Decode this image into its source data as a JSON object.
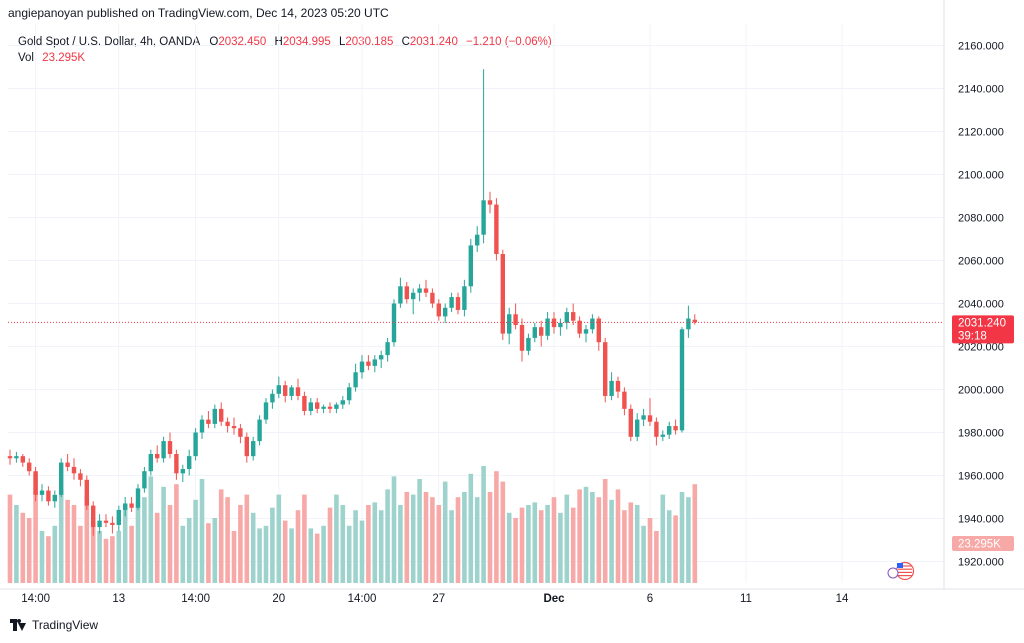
{
  "caption": "angiepanoyan published on TradingView.com, Dec 14, 2023 05:20 UTC",
  "legend": {
    "symbol": "Gold Spot / U.S. Dollar, 4h, OANDA",
    "open_label": "O",
    "open": "2032.450",
    "high_label": "H",
    "high": "2034.995",
    "low_label": "L",
    "low": "2030.185",
    "close_label": "C",
    "close": "2031.240",
    "change": "−1.210 (−0.06%)",
    "vol_label": "Vol",
    "vol": "23.295K"
  },
  "footer": {
    "brand": "TradingView",
    "logo_icon": "tradingview-logo-icon"
  },
  "colors": {
    "up": "#26a69a",
    "down": "#ef5350",
    "vol_up": "#9ed3cd",
    "vol_down": "#f7a9a7",
    "grid": "#f0f3fa",
    "price_tag": "#f23645"
  },
  "chart_data": {
    "type": "candlestick",
    "symbol": "Gold Spot / U.S. Dollar",
    "interval": "4h",
    "exchange": "OANDA",
    "ylim": [
      1910,
      2170
    ],
    "y_ticks": [
      "1920.000",
      "1940.000",
      "1960.000",
      "1980.000",
      "2000.000",
      "2020.000",
      "2040.000",
      "2060.000",
      "2080.000",
      "2100.000",
      "2120.000",
      "2140.000",
      "2160.000"
    ],
    "x_ticks": [
      {
        "label": "14:00",
        "index": 4
      },
      {
        "label": "13",
        "index": 17
      },
      {
        "label": "14:00",
        "index": 29
      },
      {
        "label": "20",
        "index": 42
      },
      {
        "label": "14:00",
        "index": 55
      },
      {
        "label": "27",
        "index": 67
      },
      {
        "label": "Dec",
        "index": 85
      },
      {
        "label": "6",
        "index": 100
      },
      {
        "label": "11",
        "index": 115
      },
      {
        "label": "14",
        "index": 130
      }
    ],
    "last_price": {
      "value": 2031.24,
      "label": "2031.240",
      "countdown": "39:18"
    },
    "volume_label": "23.295K",
    "candles": [
      [
        1969,
        1972,
        1965,
        1968
      ],
      [
        1968,
        1971,
        1966,
        1969
      ],
      [
        1969,
        1970,
        1964,
        1966
      ],
      [
        1966,
        1968,
        1960,
        1962
      ],
      [
        1962,
        1964,
        1948,
        1951
      ],
      [
        1951,
        1956,
        1948,
        1953
      ],
      [
        1953,
        1955,
        1946,
        1948
      ],
      [
        1948,
        1953,
        1945,
        1951
      ],
      [
        1951,
        1968,
        1950,
        1966
      ],
      [
        1966,
        1970,
        1962,
        1964
      ],
      [
        1964,
        1968,
        1958,
        1961
      ],
      [
        1961,
        1963,
        1955,
        1958
      ],
      [
        1958,
        1960,
        1944,
        1946
      ],
      [
        1946,
        1948,
        1932,
        1936
      ],
      [
        1936,
        1942,
        1933,
        1939
      ],
      [
        1939,
        1942,
        1936,
        1938
      ],
      [
        1938,
        1941,
        1933,
        1937
      ],
      [
        1937,
        1946,
        1934,
        1944
      ],
      [
        1944,
        1950,
        1941,
        1947
      ],
      [
        1947,
        1950,
        1943,
        1945
      ],
      [
        1945,
        1956,
        1944,
        1954
      ],
      [
        1954,
        1964,
        1952,
        1962
      ],
      [
        1962,
        1972,
        1960,
        1970
      ],
      [
        1970,
        1974,
        1966,
        1968
      ],
      [
        1968,
        1978,
        1966,
        1976
      ],
      [
        1976,
        1980,
        1968,
        1970
      ],
      [
        1970,
        1972,
        1958,
        1961
      ],
      [
        1961,
        1965,
        1957,
        1963
      ],
      [
        1963,
        1972,
        1960,
        1969
      ],
      [
        1969,
        1982,
        1967,
        1980
      ],
      [
        1980,
        1988,
        1977,
        1986
      ],
      [
        1986,
        1990,
        1982,
        1984
      ],
      [
        1984,
        1993,
        1982,
        1991
      ],
      [
        1991,
        1994,
        1983,
        1985
      ],
      [
        1985,
        1987,
        1980,
        1983
      ],
      [
        1983,
        1987,
        1979,
        1982
      ],
      [
        1982,
        1984,
        1975,
        1978
      ],
      [
        1978,
        1980,
        1966,
        1969
      ],
      [
        1969,
        1978,
        1967,
        1976
      ],
      [
        1976,
        1988,
        1974,
        1986
      ],
      [
        1986,
        1996,
        1984,
        1994
      ],
      [
        1994,
        2000,
        1991,
        1998
      ],
      [
        1998,
        2006,
        1996,
        2002
      ],
      [
        2002,
        2004,
        1994,
        1997
      ],
      [
        1997,
        2002,
        1995,
        2001
      ],
      [
        2001,
        2005,
        1995,
        1997
      ],
      [
        1997,
        1999,
        1988,
        1990
      ],
      [
        1990,
        1996,
        1988,
        1994
      ],
      [
        1994,
        1996,
        1989,
        1991
      ],
      [
        1991,
        1993,
        1989,
        1992
      ],
      [
        1992,
        1994,
        1989,
        1991
      ],
      [
        1991,
        1994,
        1989,
        1993
      ],
      [
        1993,
        1997,
        1991,
        1995
      ],
      [
        1995,
        2003,
        1993,
        2001
      ],
      [
        2001,
        2012,
        1999,
        2008
      ],
      [
        2008,
        2016,
        2005,
        2013
      ],
      [
        2013,
        2016,
        2009,
        2011
      ],
      [
        2011,
        2016,
        2008,
        2014
      ],
      [
        2014,
        2018,
        2010,
        2016
      ],
      [
        2016,
        2024,
        2013,
        2022
      ],
      [
        2022,
        2042,
        2020,
        2040
      ],
      [
        2040,
        2052,
        2038,
        2048
      ],
      [
        2048,
        2050,
        2040,
        2042
      ],
      [
        2042,
        2047,
        2035,
        2045
      ],
      [
        2045,
        2049,
        2041,
        2047
      ],
      [
        2047,
        2051,
        2043,
        2045
      ],
      [
        2045,
        2047,
        2038,
        2040
      ],
      [
        2040,
        2042,
        2032,
        2034
      ],
      [
        2034,
        2040,
        2031,
        2038
      ],
      [
        2038,
        2045,
        2036,
        2043
      ],
      [
        2043,
        2045,
        2035,
        2037
      ],
      [
        2037,
        2051,
        2034,
        2048
      ],
      [
        2048,
        2070,
        2045,
        2067
      ],
      [
        2067,
        2076,
        2064,
        2072
      ],
      [
        2072,
        2149,
        2068,
        2088
      ],
      [
        2088,
        2092,
        2082,
        2086
      ],
      [
        2086,
        2089,
        2060,
        2063
      ],
      [
        2063,
        2065,
        2023,
        2026
      ],
      [
        2026,
        2038,
        2021,
        2035
      ],
      [
        2035,
        2040,
        2028,
        2030
      ],
      [
        2030,
        2033,
        2013,
        2018
      ],
      [
        2018,
        2026,
        2016,
        2024
      ],
      [
        2024,
        2031,
        2022,
        2029
      ],
      [
        2029,
        2032,
        2020,
        2025
      ],
      [
        2025,
        2036,
        2023,
        2033
      ],
      [
        2033,
        2036,
        2026,
        2029
      ],
      [
        2029,
        2033,
        2025,
        2031
      ],
      [
        2031,
        2038,
        2028,
        2036
      ],
      [
        2036,
        2040,
        2030,
        2032
      ],
      [
        2032,
        2034,
        2024,
        2026
      ],
      [
        2026,
        2030,
        2022,
        2028
      ],
      [
        2028,
        2035,
        2026,
        2033
      ],
      [
        2033,
        2034,
        2018,
        2022
      ],
      [
        2022,
        2024,
        1994,
        1997
      ],
      [
        1997,
        2008,
        1995,
        2004
      ],
      [
        2004,
        2006,
        1996,
        1999
      ],
      [
        1999,
        2001,
        1988,
        1991
      ],
      [
        1991,
        1993,
        1976,
        1978
      ],
      [
        1978,
        1989,
        1976,
        1986
      ],
      [
        1986,
        1991,
        1983,
        1988
      ],
      [
        1988,
        1996,
        1983,
        1985
      ],
      [
        1985,
        1987,
        1974,
        1978
      ],
      [
        1978,
        1981,
        1976,
        1979
      ],
      [
        1979,
        1985,
        1977,
        1983
      ],
      [
        1983,
        1986,
        1979,
        1981
      ],
      [
        1981,
        2029,
        1980,
        2028
      ],
      [
        2028,
        2039,
        2024,
        2033
      ],
      [
        2032.45,
        2034.995,
        2030.185,
        2031.24
      ]
    ],
    "volumes": [
      34,
      30,
      27,
      25,
      42,
      20,
      18,
      22,
      36,
      32,
      30,
      22,
      33,
      24,
      20,
      17,
      18,
      20,
      30,
      22,
      31,
      33,
      41,
      27,
      37,
      30,
      38,
      22,
      25,
      32,
      40,
      23,
      25,
      36,
      33,
      20,
      30,
      34,
      27,
      21,
      22,
      29,
      34,
      24,
      21,
      28,
      34,
      21,
      19,
      22,
      29,
      34,
      30,
      22,
      28,
      24,
      30,
      31,
      28,
      36,
      41,
      30,
      35,
      34,
      40,
      35,
      33,
      30,
      39,
      28,
      33,
      35,
      42,
      33,
      45,
      35,
      43,
      39,
      27,
      25,
      29,
      30,
      31,
      28,
      30,
      33,
      27,
      34,
      29,
      36,
      37,
      35,
      33,
      40,
      32,
      36,
      28,
      31,
      30,
      22,
      25,
      20,
      34,
      28,
      26,
      35,
      33,
      38
    ]
  }
}
